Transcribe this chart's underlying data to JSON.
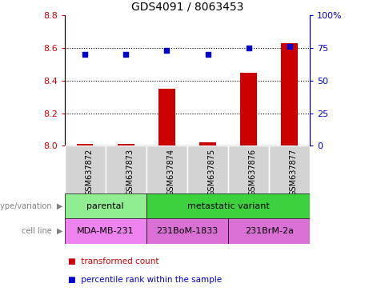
{
  "title": "GDS4091 / 8063453",
  "samples": [
    "GSM637872",
    "GSM637873",
    "GSM637874",
    "GSM637875",
    "GSM637876",
    "GSM637877"
  ],
  "transformed_count": [
    8.01,
    8.01,
    8.35,
    8.02,
    8.45,
    8.63
  ],
  "percentile_rank": [
    70,
    70,
    73,
    70,
    75,
    76
  ],
  "ylim_left": [
    8.0,
    8.8
  ],
  "ylim_right": [
    0,
    100
  ],
  "yticks_left": [
    8.0,
    8.2,
    8.4,
    8.6,
    8.8
  ],
  "yticks_right": [
    0,
    25,
    50,
    75,
    100
  ],
  "ytick_labels_right": [
    "0",
    "25",
    "50",
    "75",
    "100%"
  ],
  "bar_color": "#cc0000",
  "dot_color": "#0000cc",
  "bar_width": 0.4,
  "tick_color_left": "#cc0000",
  "tick_color_right": "#0000cc",
  "parental_color": "#90ee90",
  "metastatic_color": "#3dd13d",
  "cell_mda_color": "#ee82ee",
  "cell_bom_color": "#da70d6",
  "cell_brm_color": "#da70d6",
  "sample_box_color": "#d3d3d3",
  "annotation_label_color": "#808080"
}
